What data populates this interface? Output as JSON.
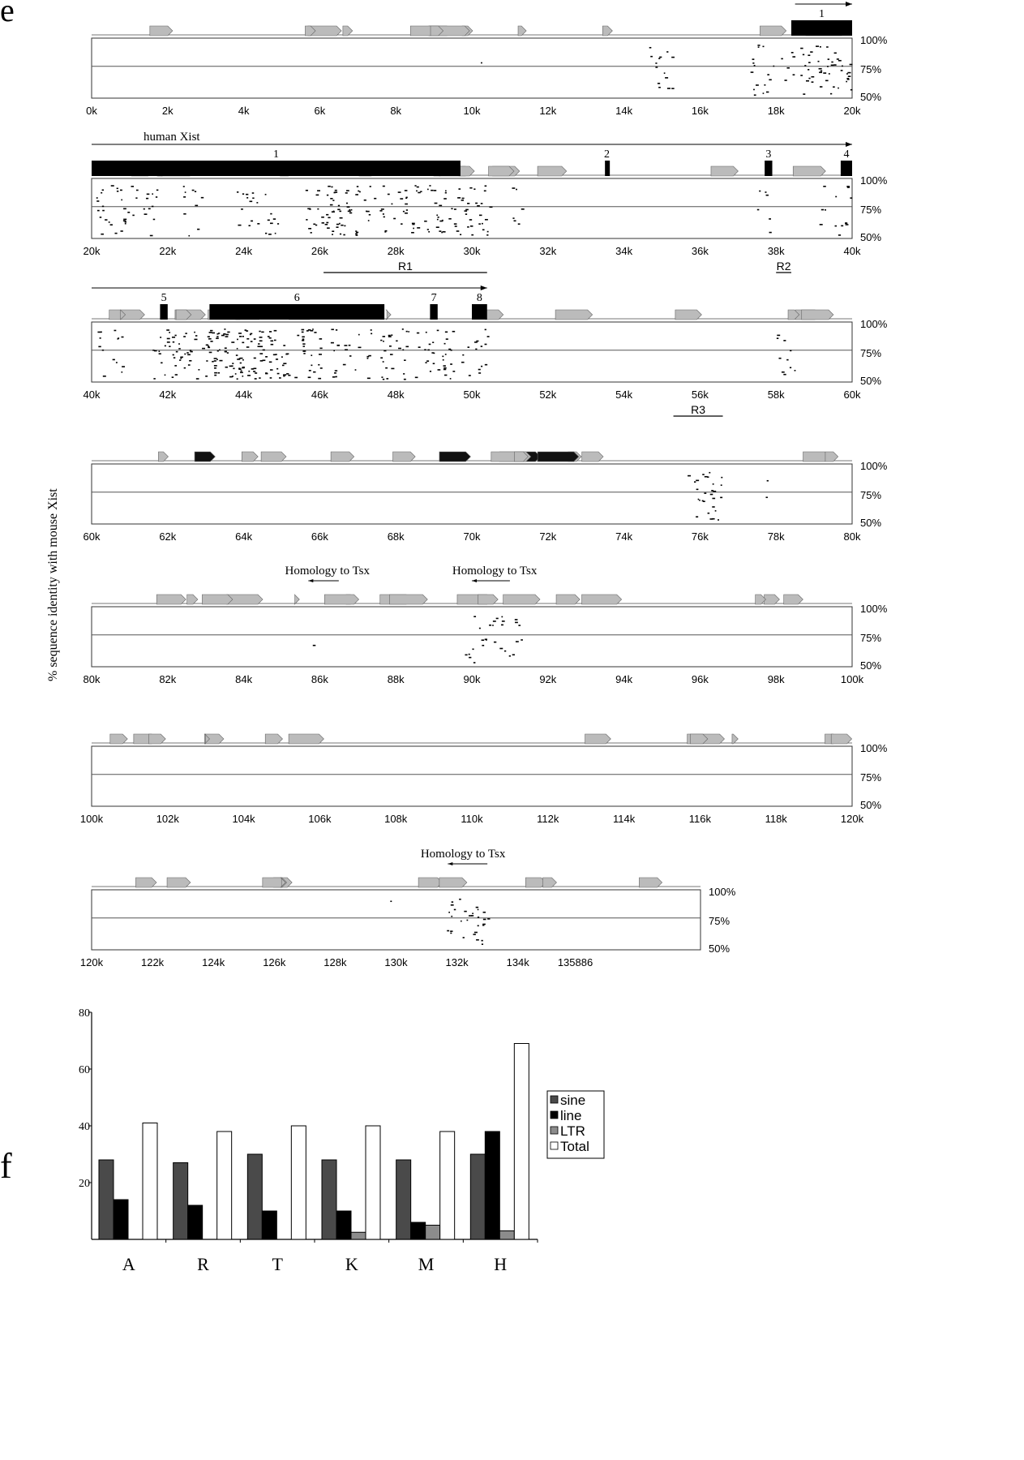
{
  "panel_labels": {
    "e": "e",
    "f": "f"
  },
  "y_axis_title": "% sequence identity with mouse Xist",
  "chart_data": [
    {
      "type": "scatter",
      "panel": "e",
      "y_ticks": [
        "100%",
        "75%",
        "50%"
      ],
      "rows": [
        {
          "xlim": [
            0,
            20
          ],
          "x_ticks": [
            "0k",
            "2k",
            "4k",
            "6k",
            "8k",
            "10k",
            "12k",
            "14k",
            "16k",
            "18k",
            "20k"
          ],
          "arrows": [
            {
              "from": 18.5,
              "to": 20
            }
          ],
          "exons": [
            {
              "label": "1",
              "start": 18.4,
              "end": 20
            }
          ],
          "annotations": [],
          "ranges": [],
          "clusters": [
            {
              "x0": 10.2,
              "x1": 10.3,
              "n": 1
            },
            {
              "x0": 14.6,
              "x1": 15.3,
              "n": 14
            },
            {
              "x0": 17.3,
              "x1": 18.6,
              "n": 22
            },
            {
              "x0": 18.6,
              "x1": 20,
              "n": 45
            }
          ]
        },
        {
          "xlim": [
            20,
            40
          ],
          "x_ticks": [
            "20k",
            "22k",
            "24k",
            "26k",
            "28k",
            "30k",
            "32k",
            "34k",
            "36k",
            "38k",
            "40k"
          ],
          "arrows": [
            {
              "from": 20,
              "to": 40,
              "label": "human Xist"
            }
          ],
          "exons": [
            {
              "label": "1",
              "start": 20,
              "end": 29.7
            },
            {
              "label": "2",
              "start": 33.5,
              "end": 33.6
            },
            {
              "label": "3",
              "start": 37.7,
              "end": 37.9
            },
            {
              "label": "4",
              "start": 39.7,
              "end": 40
            }
          ],
          "annotations": [],
          "ranges": [
            {
              "label": "R1",
              "start": 26.1,
              "end": 30.4
            },
            {
              "label": "R2",
              "start": 38,
              "end": 38.4
            }
          ],
          "clusters": [
            {
              "x0": 20.1,
              "x1": 21.8,
              "n": 40
            },
            {
              "x0": 22.4,
              "x1": 22.9,
              "n": 10
            },
            {
              "x0": 23.8,
              "x1": 24.9,
              "n": 22
            },
            {
              "x0": 25.6,
              "x1": 30.5,
              "n": 150
            },
            {
              "x0": 31,
              "x1": 31.3,
              "n": 6
            },
            {
              "x0": 37.5,
              "x1": 37.9,
              "n": 6
            },
            {
              "x0": 39.0,
              "x1": 39.3,
              "n": 4
            },
            {
              "x0": 39.5,
              "x1": 40,
              "n": 10
            }
          ]
        },
        {
          "xlim": [
            40,
            60
          ],
          "x_ticks": [
            "40k",
            "42k",
            "44k",
            "46k",
            "48k",
            "50k",
            "52k",
            "54k",
            "56k",
            "58k",
            "60k"
          ],
          "arrows": [
            {
              "from": 40,
              "to": 50.4
            }
          ],
          "exons": [
            {
              "label": "5",
              "start": 41.8,
              "end": 42.0
            },
            {
              "label": "6",
              "start": 43.1,
              "end": 47.7
            },
            {
              "label": "7",
              "start": 48.9,
              "end": 49.1
            },
            {
              "label": "8",
              "start": 50.0,
              "end": 50.4
            }
          ],
          "annotations": [],
          "ranges": [
            {
              "label": "R3",
              "start": 55.3,
              "end": 56.6
            }
          ],
          "clusters": [
            {
              "x0": 40.1,
              "x1": 40.8,
              "n": 14
            },
            {
              "x0": 41.6,
              "x1": 43,
              "n": 45
            },
            {
              "x0": 43,
              "x1": 44.8,
              "n": 110
            },
            {
              "x0": 44.8,
              "x1": 50.4,
              "n": 140
            },
            {
              "x0": 58,
              "x1": 58.5,
              "n": 10
            }
          ]
        },
        {
          "xlim": [
            60,
            80
          ],
          "x_ticks": [
            "60k",
            "62k",
            "64k",
            "66k",
            "68k",
            "70k",
            "72k",
            "74k",
            "76k",
            "78k",
            "80k"
          ],
          "arrows": [],
          "exons": [],
          "annotations": [],
          "ranges": [],
          "clusters": [
            {
              "x0": 75.6,
              "x1": 76.6,
              "n": 28
            },
            {
              "x0": 77.6,
              "x1": 77.8,
              "n": 2
            }
          ]
        },
        {
          "xlim": [
            80,
            100
          ],
          "x_ticks": [
            "80k",
            "82k",
            "84k",
            "86k",
            "88k",
            "90k",
            "92k",
            "94k",
            "96k",
            "98k",
            "100k"
          ],
          "arrows": [],
          "exons": [],
          "annotations": [
            {
              "label": "Homology to Tsx",
              "x": 86.2,
              "arrow_from": 86.5,
              "arrow_to": 85.7
            },
            {
              "label": "Homology to Tsx",
              "x": 90.6,
              "arrow_from": 91.0,
              "arrow_to": 90.0
            }
          ],
          "ranges": [],
          "clusters": [
            {
              "x0": 85.8,
              "x1": 86.0,
              "n": 1
            },
            {
              "x0": 89.8,
              "x1": 91.3,
              "n": 28
            }
          ]
        },
        {
          "xlim": [
            100,
            120
          ],
          "x_ticks": [
            "100k",
            "102k",
            "104k",
            "106k",
            "108k",
            "110k",
            "112k",
            "114k",
            "116k",
            "118k",
            "120k"
          ],
          "arrows": [],
          "exons": [],
          "annotations": [],
          "ranges": [],
          "clusters": []
        },
        {
          "xlim": [
            120,
            140
          ],
          "x_ticks": [
            "120k",
            "122k",
            "124k",
            "126k",
            "128k",
            "130k",
            "132k",
            "134k",
            "135886"
          ],
          "x_tick_values": [
            120,
            122,
            124,
            126,
            128,
            130,
            132,
            134,
            135.886
          ],
          "arrows": [],
          "exons": [],
          "annotations": [
            {
              "label": "Homology to Tsx",
              "x": 132.2,
              "arrow_from": 133.0,
              "arrow_to": 131.7
            }
          ],
          "ranges": [],
          "clusters": [
            {
              "x0": 129.8,
              "x1": 130.0,
              "n": 1
            },
            {
              "x0": 131.6,
              "x1": 133.0,
              "n": 30
            }
          ]
        }
      ]
    },
    {
      "type": "bar",
      "panel": "f",
      "categories": [
        "A",
        "R",
        "T",
        "K",
        "M",
        "H"
      ],
      "series": [
        {
          "name": "sine",
          "values": [
            28,
            27,
            30,
            28,
            28,
            30
          ],
          "color": "#4a4a4a"
        },
        {
          "name": "line",
          "values": [
            14,
            12,
            10,
            10,
            6,
            38
          ],
          "color": "#000000"
        },
        {
          "name": "LTR",
          "values": [
            0,
            0,
            0,
            2.5,
            5,
            3
          ],
          "color": "#8c8c8c"
        },
        {
          "name": "Total",
          "values": [
            41,
            38,
            40,
            40,
            38,
            69
          ],
          "color": "#ffffff"
        }
      ],
      "y_ticks": [
        "80",
        "60",
        "40",
        "20"
      ],
      "ylim": [
        0,
        80
      ],
      "legend": "right"
    }
  ]
}
